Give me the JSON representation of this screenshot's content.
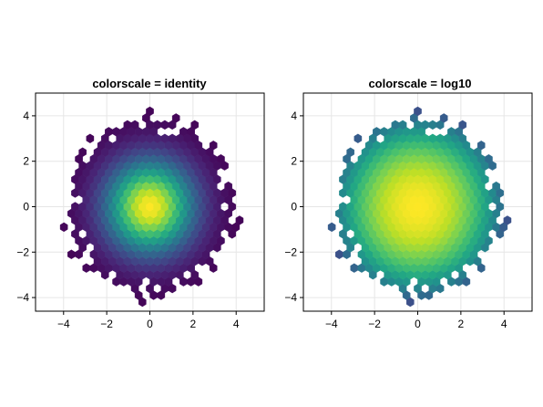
{
  "chart_data": [
    {
      "type": "heatmap",
      "subtype": "hexbin",
      "title": "colorscale = identity",
      "colorscale": "identity",
      "colormap": "viridis",
      "xlim": [
        -5.3,
        5.3
      ],
      "ylim": [
        -4.6,
        5.0
      ],
      "xticks": [
        -4,
        -2,
        0,
        2,
        4
      ],
      "yticks": [
        -4,
        -2,
        0,
        2,
        4
      ],
      "xtick_labels": [
        "−4",
        "−2",
        "0",
        "2",
        "4"
      ],
      "ytick_labels": [
        "−4",
        "−2",
        "0",
        "2",
        "4"
      ],
      "grid": true,
      "distribution": {
        "kind": "bivariate normal",
        "mean": [
          0,
          0
        ],
        "std": [
          1.4,
          1.4
        ]
      },
      "density_max_center": [
        0,
        0
      ],
      "approx_extent_radius": 3.8
    },
    {
      "type": "heatmap",
      "subtype": "hexbin",
      "title": "colorscale = log10",
      "colorscale": "log10",
      "colormap": "viridis",
      "xlim": [
        -5.3,
        5.3
      ],
      "ylim": [
        -4.6,
        5.0
      ],
      "xticks": [
        -4,
        -2,
        0,
        2,
        4
      ],
      "yticks": [
        -4,
        -2,
        0,
        2,
        4
      ],
      "xtick_labels": [
        "−4",
        "−2",
        "0",
        "2",
        "4"
      ],
      "ytick_labels": [
        "−4",
        "−2",
        "0",
        "2",
        "4"
      ],
      "grid": true,
      "distribution": {
        "kind": "bivariate normal",
        "mean": [
          0,
          0
        ],
        "std": [
          1.4,
          1.4
        ]
      },
      "density_max_center": [
        0,
        0
      ],
      "approx_extent_radius": 3.8
    }
  ],
  "colors": {
    "viridis_dark": "#440154",
    "viridis_mid": "#21918c",
    "viridis_bright": "#fde725",
    "grid": "#e6e6e6",
    "frame": "#000000"
  }
}
